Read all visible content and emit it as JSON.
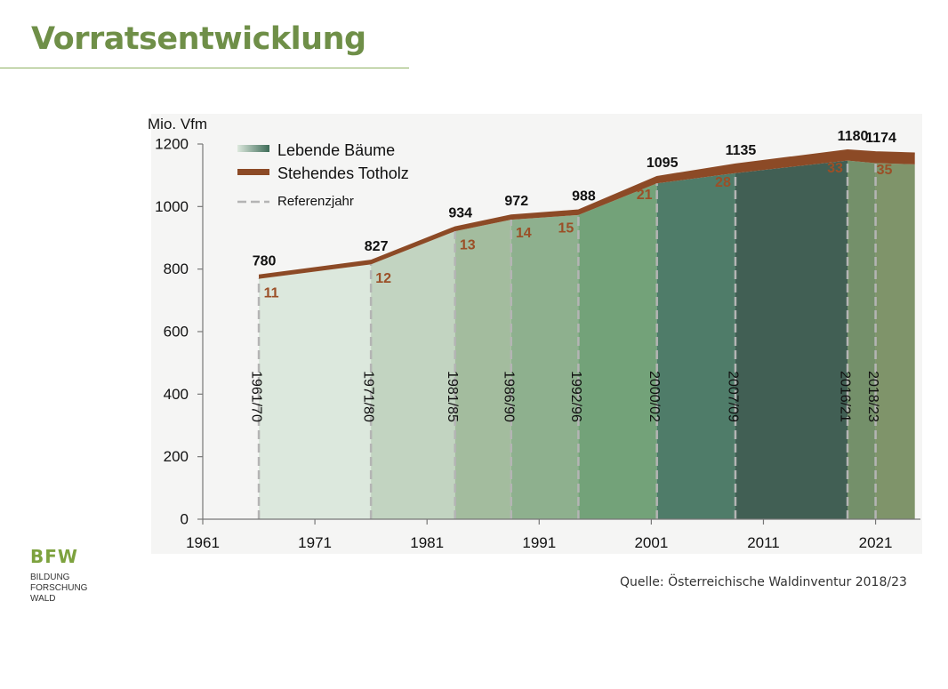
{
  "slide": {
    "title": "Vorratsentwicklung",
    "source": "Quelle: Österreichische Waldinventur 2018/23",
    "logo_mark": "BFW",
    "logo_lines": [
      "BILDUNG",
      "FORSCHUNG",
      "WALD"
    ]
  },
  "chart_data": {
    "type": "area",
    "ylabel": "Mio. Vfm",
    "xlim": [
      1961,
      2025
    ],
    "ylim": [
      0,
      1200
    ],
    "x_ticks": [
      1961,
      1971,
      1981,
      1991,
      2001,
      2011,
      2021
    ],
    "y_ticks": [
      0,
      200,
      400,
      600,
      800,
      1000,
      1200
    ],
    "legend": {
      "placement": "top-left",
      "entries": [
        "Lebende Bäume",
        "Stehendes Totholz",
        "Referenzjahr"
      ]
    },
    "colors": {
      "deadwood": "#8c4a26",
      "deadwood_label": "#9b4f27",
      "reference_line": "#b4b4b4",
      "total_label": "#111111",
      "segments": [
        "#dce8dd",
        "#c2d4c1",
        "#a3bc9e",
        "#8eb08e",
        "#73a279",
        "#4f7c69",
        "#415f54",
        "#74906a",
        "#7f946a"
      ]
    },
    "series": [
      {
        "name": "Lebende Bäume",
        "x": [
          1966,
          1976,
          1983.5,
          1988.5,
          1994.5,
          2001.5,
          2008.5,
          2018.5,
          2021
        ],
        "values": [
          769,
          815,
          921,
          958,
          973,
          1074,
          1107,
          1147,
          1139
        ]
      },
      {
        "name": "Stehendes Totholz",
        "x": [
          1966,
          1976,
          1983.5,
          1988.5,
          1994.5,
          2001.5,
          2008.5,
          2018.5,
          2021
        ],
        "values": [
          11,
          12,
          13,
          14,
          15,
          21,
          28,
          33,
          35
        ]
      }
    ],
    "totals": [
      780,
      827,
      934,
      972,
      988,
      1095,
      1135,
      1180,
      1174
    ],
    "end_x": 2024.5,
    "end_total": 1170,
    "end_deadwood": 35,
    "periods": [
      {
        "label": "1961/70",
        "x": 1966
      },
      {
        "label": "1971/80",
        "x": 1976
      },
      {
        "label": "1981/85",
        "x": 1983.5
      },
      {
        "label": "1986/90",
        "x": 1988.5
      },
      {
        "label": "1992/96",
        "x": 1994.5
      },
      {
        "label": "2000/02",
        "x": 2001.5
      },
      {
        "label": "2007/09",
        "x": 2008.5
      },
      {
        "label": "2016/21",
        "x": 2018.5
      },
      {
        "label": "2018/23",
        "x": 2021
      }
    ]
  }
}
